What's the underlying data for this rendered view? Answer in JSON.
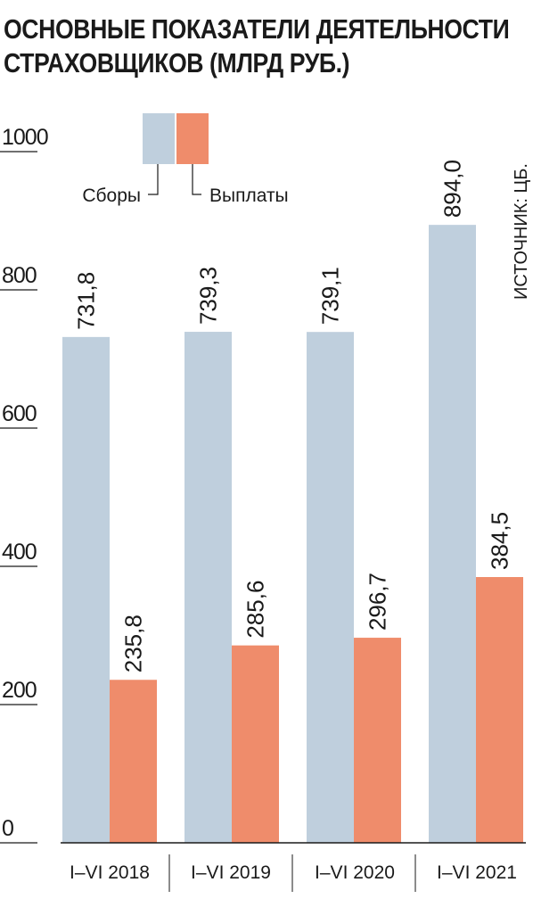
{
  "title_lines": [
    "ОСНОВНЫЕ ПОКАЗАТЕЛИ ДЕЯТЕЛЬНОСТИ",
    "СТРАХОВЩИКОВ (МЛРД РУБ.)"
  ],
  "source": "ИСТОЧНИК: ЦБ.",
  "colors": {
    "collections": "#bfcfdd",
    "payments": "#ef8c6b"
  },
  "chart_data": {
    "type": "bar",
    "title": "ОСНОВНЫЕ ПОКАЗАТЕЛИ ДЕЯТЕЛЬНОСТИ СТРАХОВЩИКОВ (МЛРД РУБ.)",
    "categories": [
      "I–VI 2018",
      "I–VI 2019",
      "I–VI 2020",
      "I–VI 2021"
    ],
    "series": [
      {
        "name": "Сборы",
        "values": [
          731.8,
          739.3,
          739.1,
          894.0
        ],
        "labels": [
          "731,8",
          "739,3",
          "739,1",
          "894,0"
        ]
      },
      {
        "name": "Выплаты",
        "values": [
          235.8,
          285.6,
          296.7,
          384.5
        ],
        "labels": [
          "235,8",
          "285,6",
          "296,7",
          "384,5"
        ]
      }
    ],
    "yticks": [
      "0",
      "200",
      "400",
      "600",
      "800",
      "1000"
    ],
    "ylim": [
      0,
      1000
    ],
    "legend": "top-left",
    "grid": false
  }
}
